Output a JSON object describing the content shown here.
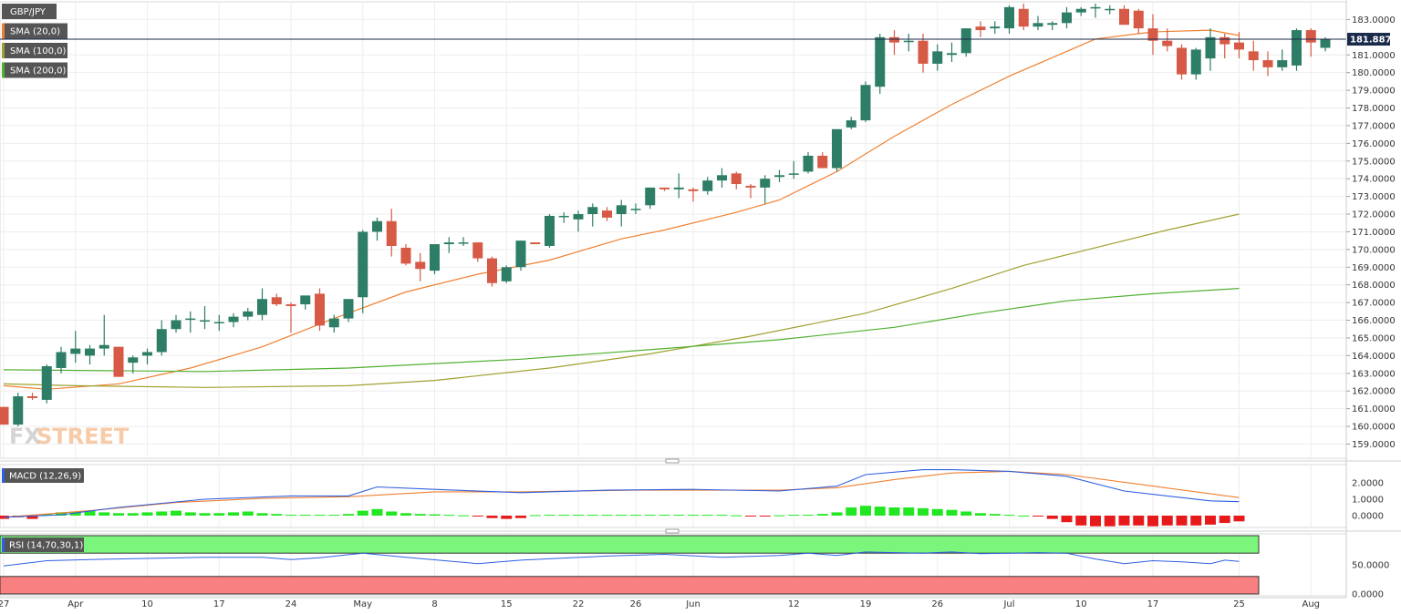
{
  "chart_data": [
    {
      "type": "candlestick",
      "title": "GBP/JPY",
      "current_price": "181.8870",
      "y_ticks": [
        "159.0000",
        "160.0000",
        "161.0000",
        "162.0000",
        "163.0000",
        "164.0000",
        "165.0000",
        "166.0000",
        "167.0000",
        "168.0000",
        "169.0000",
        "170.0000",
        "171.0000",
        "172.0000",
        "173.0000",
        "174.0000",
        "175.0000",
        "176.0000",
        "177.0000",
        "178.0000",
        "179.0000",
        "180.0000",
        "181.0000",
        "183.0000"
      ],
      "ylim": [
        158.2,
        184.0
      ],
      "x_ticks": [
        {
          "label": "27",
          "i": 0
        },
        {
          "label": "Apr",
          "i": 5
        },
        {
          "label": "10",
          "i": 10
        },
        {
          "label": "17",
          "i": 15
        },
        {
          "label": "24",
          "i": 20
        },
        {
          "label": "May",
          "i": 25
        },
        {
          "label": "8",
          "i": 30
        },
        {
          "label": "15",
          "i": 35
        },
        {
          "label": "22",
          "i": 40
        },
        {
          "label": "26",
          "i": 44
        },
        {
          "label": "Jun",
          "i": 48
        },
        {
          "label": "12",
          "i": 55
        },
        {
          "label": "19",
          "i": 60
        },
        {
          "label": "26",
          "i": 65
        },
        {
          "label": "Jul",
          "i": 70
        },
        {
          "label": "10",
          "i": 75
        },
        {
          "label": "17",
          "i": 80
        },
        {
          "label": "25",
          "i": 86
        },
        {
          "label": "Aug",
          "i": 91
        }
      ],
      "candles": [
        [
          161.1,
          161.1,
          160.1,
          160.1
        ],
        [
          160.1,
          161.9,
          160.0,
          161.7
        ],
        [
          161.7,
          161.9,
          161.5,
          161.6
        ],
        [
          161.5,
          163.5,
          161.3,
          163.4
        ],
        [
          163.3,
          164.5,
          163.0,
          164.2
        ],
        [
          164.1,
          165.4,
          163.6,
          164.4
        ],
        [
          164.0,
          164.6,
          163.5,
          164.4
        ],
        [
          164.4,
          166.3,
          164.0,
          164.6
        ],
        [
          164.5,
          164.5,
          162.8,
          162.8
        ],
        [
          163.6,
          164.0,
          163.0,
          163.9
        ],
        [
          164.0,
          164.4,
          163.5,
          164.2
        ],
        [
          164.2,
          166.0,
          164.0,
          165.5
        ],
        [
          165.5,
          166.3,
          165.3,
          166.0
        ],
        [
          166.1,
          166.5,
          165.3,
          166.1
        ],
        [
          166.0,
          166.8,
          165.5,
          166.0
        ],
        [
          165.9,
          166.3,
          165.4,
          165.9
        ],
        [
          165.9,
          166.4,
          165.6,
          166.2
        ],
        [
          166.2,
          166.7,
          166.0,
          166.5
        ],
        [
          166.3,
          167.8,
          166.0,
          167.2
        ],
        [
          167.3,
          167.5,
          166.8,
          166.9
        ],
        [
          166.9,
          167.0,
          165.3,
          166.8
        ],
        [
          166.9,
          167.4,
          166.6,
          167.4
        ],
        [
          167.5,
          167.8,
          165.4,
          165.7
        ],
        [
          165.6,
          166.3,
          165.3,
          166.1
        ],
        [
          166.1,
          167.1,
          165.9,
          167.2
        ],
        [
          167.3,
          171.1,
          166.4,
          171.0
        ],
        [
          171.0,
          171.8,
          170.5,
          171.6
        ],
        [
          171.6,
          172.3,
          169.6,
          170.2
        ],
        [
          170.1,
          170.3,
          169.1,
          169.2
        ],
        [
          169.3,
          169.8,
          168.2,
          168.9
        ],
        [
          168.8,
          170.3,
          168.6,
          170.3
        ],
        [
          170.3,
          170.7,
          169.8,
          170.4
        ],
        [
          170.4,
          170.7,
          170.2,
          170.4
        ],
        [
          170.4,
          170.4,
          169.3,
          169.5
        ],
        [
          169.5,
          169.6,
          167.9,
          168.1
        ],
        [
          168.2,
          169.1,
          168.1,
          169.0
        ],
        [
          169.0,
          170.5,
          168.8,
          170.5
        ],
        [
          170.4,
          170.4,
          170.3,
          170.3
        ],
        [
          170.2,
          172.0,
          170.1,
          171.9
        ],
        [
          171.9,
          172.1,
          171.5,
          171.9
        ],
        [
          171.7,
          172.2,
          171.0,
          172.0
        ],
        [
          172.0,
          172.6,
          171.3,
          172.4
        ],
        [
          172.2,
          172.4,
          171.6,
          171.8
        ],
        [
          172.0,
          172.8,
          171.3,
          172.5
        ],
        [
          172.3,
          172.6,
          172.0,
          172.3
        ],
        [
          172.5,
          173.5,
          172.3,
          173.5
        ],
        [
          173.5,
          173.5,
          173.3,
          173.4
        ],
        [
          173.4,
          174.3,
          172.9,
          173.5
        ],
        [
          173.4,
          173.5,
          172.7,
          173.3
        ],
        [
          173.3,
          174.1,
          173.1,
          173.9
        ],
        [
          173.9,
          174.6,
          173.5,
          174.2
        ],
        [
          174.3,
          174.4,
          173.4,
          173.7
        ],
        [
          173.6,
          173.7,
          172.9,
          173.5
        ],
        [
          173.5,
          174.2,
          172.6,
          174.0
        ],
        [
          174.1,
          174.5,
          173.8,
          174.2
        ],
        [
          174.3,
          175.0,
          174.0,
          174.3
        ],
        [
          174.4,
          175.5,
          174.3,
          175.3
        ],
        [
          175.3,
          175.5,
          174.6,
          174.6
        ],
        [
          174.6,
          176.8,
          174.4,
          176.8
        ],
        [
          176.9,
          177.5,
          176.8,
          177.3
        ],
        [
          177.3,
          179.5,
          177.2,
          179.3
        ],
        [
          179.2,
          182.2,
          178.8,
          182.0
        ],
        [
          182.0,
          182.4,
          181.0,
          181.7
        ],
        [
          181.8,
          182.2,
          181.2,
          181.8
        ],
        [
          181.8,
          182.2,
          180.0,
          180.5
        ],
        [
          180.5,
          181.6,
          180.1,
          181.2
        ],
        [
          181.0,
          181.7,
          180.6,
          181.1
        ],
        [
          181.1,
          182.5,
          180.9,
          182.5
        ],
        [
          182.6,
          182.9,
          182.0,
          182.4
        ],
        [
          182.5,
          182.9,
          182.2,
          182.6
        ],
        [
          182.5,
          183.8,
          182.2,
          183.7
        ],
        [
          183.6,
          183.9,
          182.4,
          182.6
        ],
        [
          182.6,
          183.2,
          182.4,
          182.8
        ],
        [
          182.7,
          182.9,
          182.4,
          182.8
        ],
        [
          182.8,
          183.7,
          182.5,
          183.4
        ],
        [
          183.4,
          183.7,
          183.2,
          183.6
        ],
        [
          183.7,
          183.9,
          183.1,
          183.7
        ],
        [
          183.6,
          183.8,
          183.3,
          183.6
        ],
        [
          183.6,
          183.8,
          182.8,
          182.7
        ],
        [
          183.5,
          183.6,
          182.2,
          182.5
        ],
        [
          182.5,
          183.3,
          181.0,
          181.8
        ],
        [
          181.8,
          182.5,
          181.2,
          181.5
        ],
        [
          181.4,
          181.6,
          179.6,
          179.9
        ],
        [
          179.9,
          181.4,
          179.6,
          181.3
        ],
        [
          180.8,
          182.5,
          180.1,
          182.0
        ],
        [
          182.0,
          182.2,
          180.8,
          181.6
        ],
        [
          181.7,
          182.3,
          180.8,
          181.3
        ],
        [
          181.2,
          181.8,
          180.1,
          180.7
        ],
        [
          180.7,
          181.2,
          179.8,
          180.3
        ],
        [
          180.3,
          181.3,
          180.1,
          180.7
        ],
        [
          180.4,
          182.5,
          180.1,
          182.4
        ],
        [
          182.4,
          182.5,
          180.9,
          181.7
        ],
        [
          181.4,
          182.0,
          181.2,
          181.9
        ]
      ],
      "series": [
        {
          "name": "SMA (20,0)",
          "color": "#f08030",
          "values": [
            [
              0,
              162.3
            ],
            [
              3,
              162.1
            ],
            [
              8,
              162.4
            ],
            [
              13,
              163.3
            ],
            [
              18,
              164.5
            ],
            [
              23,
              166.1
            ],
            [
              28,
              167.6
            ],
            [
              33,
              168.6
            ],
            [
              38,
              169.4
            ],
            [
              43,
              170.6
            ],
            [
              46,
              171.1
            ],
            [
              51,
              172.1
            ],
            [
              54,
              172.8
            ],
            [
              58,
              174.4
            ],
            [
              62,
              176.4
            ],
            [
              66,
              178.2
            ],
            [
              70,
              179.8
            ],
            [
              74,
              181.2
            ],
            [
              76,
              181.9
            ],
            [
              80,
              182.3
            ],
            [
              84,
              182.4
            ],
            [
              86,
              182.1
            ]
          ]
        },
        {
          "name": "SMA (100,0)",
          "color": "#a0a030",
          "values": [
            [
              0,
              162.4
            ],
            [
              5,
              162.3
            ],
            [
              14,
              162.2
            ],
            [
              24,
              162.3
            ],
            [
              30,
              162.6
            ],
            [
              38,
              163.3
            ],
            [
              45,
              164.1
            ],
            [
              52,
              165.1
            ],
            [
              60,
              166.4
            ],
            [
              66,
              167.8
            ],
            [
              71,
              169.1
            ],
            [
              76,
              170.1
            ],
            [
              81,
              171.1
            ],
            [
              86,
              172.0
            ]
          ]
        },
        {
          "name": "SMA (200,0)",
          "color": "#50b030",
          "values": [
            [
              0,
              163.2
            ],
            [
              14,
              163.1
            ],
            [
              24,
              163.3
            ],
            [
              36,
              163.8
            ],
            [
              46,
              164.4
            ],
            [
              54,
              164.9
            ],
            [
              62,
              165.6
            ],
            [
              68,
              166.4
            ],
            [
              74,
              167.1
            ],
            [
              80,
              167.5
            ],
            [
              86,
              167.8
            ]
          ]
        }
      ]
    },
    {
      "type": "macd",
      "title": "MACD (12,26,9)",
      "y_ticks": [
        "2.0000",
        "1.0000",
        "0.0000"
      ],
      "ylim": [
        -0.8,
        2.9
      ],
      "macd": [
        [
          0,
          -0.1
        ],
        [
          4,
          0.05
        ],
        [
          8,
          0.5
        ],
        [
          14,
          1.0
        ],
        [
          20,
          1.2
        ],
        [
          24,
          1.2
        ],
        [
          26,
          1.75
        ],
        [
          30,
          1.6
        ],
        [
          36,
          1.4
        ],
        [
          42,
          1.55
        ],
        [
          48,
          1.6
        ],
        [
          54,
          1.5
        ],
        [
          58,
          1.8
        ],
        [
          60,
          2.5
        ],
        [
          64,
          2.8
        ],
        [
          66,
          2.8
        ],
        [
          70,
          2.7
        ],
        [
          74,
          2.4
        ],
        [
          78,
          1.5
        ],
        [
          84,
          0.9
        ],
        [
          86,
          0.85
        ]
      ],
      "signal": [
        [
          0,
          -0.1
        ],
        [
          6,
          0.3
        ],
        [
          12,
          0.8
        ],
        [
          18,
          1.05
        ],
        [
          24,
          1.15
        ],
        [
          30,
          1.45
        ],
        [
          36,
          1.45
        ],
        [
          44,
          1.55
        ],
        [
          54,
          1.55
        ],
        [
          58,
          1.7
        ],
        [
          62,
          2.2
        ],
        [
          66,
          2.6
        ],
        [
          70,
          2.7
        ],
        [
          74,
          2.5
        ],
        [
          80,
          1.8
        ],
        [
          86,
          1.1
        ]
      ],
      "histogram": [
        -0.2,
        -0.1,
        -0.2,
        0.1,
        0.2,
        0.25,
        0.3,
        0.2,
        0.15,
        0.15,
        0.2,
        0.25,
        0.3,
        0.2,
        0.15,
        0.15,
        0.2,
        0.25,
        0.15,
        0.1,
        0.05,
        0.05,
        0.05,
        0.05,
        0.1,
        0.3,
        0.4,
        0.25,
        0.15,
        0.1,
        0.08,
        0.05,
        0.02,
        -0.05,
        -0.15,
        -0.2,
        -0.15,
        0.03,
        0.05,
        0.05,
        0.05,
        0.05,
        0.05,
        0.05,
        0.05,
        0.05,
        0.05,
        0.05,
        0.05,
        0.05,
        0.05,
        0.02,
        -0.05,
        -0.05,
        0.02,
        0.05,
        0.05,
        0.1,
        0.2,
        0.5,
        0.6,
        0.55,
        0.5,
        0.5,
        0.45,
        0.4,
        0.35,
        0.25,
        0.15,
        0.1,
        0.05,
        0.0,
        -0.05,
        -0.2,
        -0.4,
        -0.6,
        -0.65,
        -0.65,
        -0.6,
        -0.6,
        -0.65,
        -0.6,
        -0.6,
        -0.6,
        -0.55,
        -0.45,
        -0.35
      ]
    },
    {
      "type": "rsi",
      "title": "RSI (14,70,30,1)",
      "y_ticks": [
        "50.0000",
        "0.0000"
      ],
      "ylim": [
        0,
        100
      ],
      "overbought": 70,
      "oversold": 30,
      "values": [
        [
          0,
          48
        ],
        [
          3,
          57
        ],
        [
          6,
          59
        ],
        [
          10,
          61
        ],
        [
          14,
          63
        ],
        [
          18,
          63
        ],
        [
          20,
          59
        ],
        [
          22,
          62
        ],
        [
          25,
          70
        ],
        [
          28,
          63
        ],
        [
          33,
          52
        ],
        [
          36,
          58
        ],
        [
          42,
          65
        ],
        [
          46,
          68
        ],
        [
          50,
          63
        ],
        [
          54,
          66
        ],
        [
          56,
          70
        ],
        [
          58,
          66
        ],
        [
          60,
          72
        ],
        [
          62,
          71
        ],
        [
          64,
          70
        ],
        [
          66,
          72
        ],
        [
          68,
          69
        ],
        [
          70,
          70
        ],
        [
          72,
          71
        ],
        [
          74,
          70
        ],
        [
          76,
          60
        ],
        [
          78,
          52
        ],
        [
          80,
          57
        ],
        [
          82,
          55
        ],
        [
          84,
          52
        ],
        [
          85,
          58
        ],
        [
          86,
          56
        ]
      ]
    }
  ],
  "legend": [
    {
      "label": "GBP/JPY",
      "color": "#555555"
    },
    {
      "label": "SMA (20,0)",
      "color": "#f08030"
    },
    {
      "label": "SMA (100,0)",
      "color": "#a0a030"
    },
    {
      "label": "SMA (200,0)",
      "color": "#50b030"
    }
  ],
  "watermark": {
    "part1": "FX",
    "part2": "STREET"
  },
  "colors": {
    "bull": "#2e7d66",
    "bear": "#d65a45",
    "price_line": "#1a2a4a",
    "price_tag": "#1a2a4a",
    "macd_line": "#3060e0",
    "signal_line": "#f08030",
    "hist_pos": "#22e622",
    "hist_neg": "#e61a1a",
    "rsi_line": "#3060e0",
    "rsi_ob": "#7cf57c",
    "rsi_os": "#f98080"
  }
}
